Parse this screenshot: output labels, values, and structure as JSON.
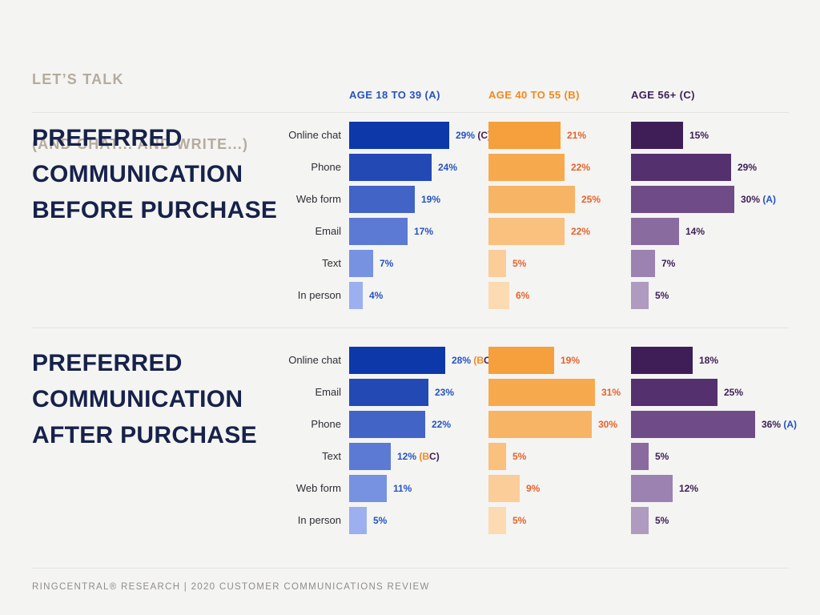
{
  "title": {
    "line1": "LET’S TALK",
    "line2": "(AND CHAT... AND WRITE...)"
  },
  "group_colors": {
    "A": "#2553C4",
    "B": "#F6871E",
    "C": "#3E2057"
  },
  "columns": [
    {
      "id": "A",
      "label": "AGE 18 TO 39 (A)",
      "header_color": "#2553C4",
      "value_color": "#2553C4",
      "shades": [
        "#0D38A9",
        "#2349B5",
        "#4264C7",
        "#5C7AD4",
        "#7792E1",
        "#9CAFEF"
      ]
    },
    {
      "id": "B",
      "label": "AGE 40 TO 55 (B)",
      "header_color": "#F6871E",
      "value_color": "#E8622D",
      "shades": [
        "#F5A03C",
        "#F7A94E",
        "#F8B465",
        "#F9C07E",
        "#FBCD98",
        "#FCDAB2"
      ]
    },
    {
      "id": "C",
      "label": "AGE 56+ (C)",
      "header_color": "#3E2057",
      "value_color": "#3E2057",
      "shades": [
        "#3F1E58",
        "#54306F",
        "#6F4C87",
        "#8A6BA0",
        "#9C82B0",
        "#AF9AC0"
      ]
    }
  ],
  "sections": [
    {
      "id": "before-purchase",
      "title_lines": [
        "PREFERRED",
        "COMMUNICATION",
        "BEFORE PURCHASE"
      ],
      "rows": [
        {
          "label": "Online chat",
          "values": [
            {
              "pct": 29,
              "notes": [
                "C"
              ]
            },
            {
              "pct": 21,
              "notes": []
            },
            {
              "pct": 15,
              "notes": []
            }
          ]
        },
        {
          "label": "Phone",
          "values": [
            {
              "pct": 24,
              "notes": []
            },
            {
              "pct": 22,
              "notes": []
            },
            {
              "pct": 29,
              "notes": []
            }
          ]
        },
        {
          "label": "Web form",
          "values": [
            {
              "pct": 19,
              "notes": []
            },
            {
              "pct": 25,
              "notes": []
            },
            {
              "pct": 30,
              "notes": [
                "A"
              ]
            }
          ]
        },
        {
          "label": "Email",
          "values": [
            {
              "pct": 17,
              "notes": []
            },
            {
              "pct": 22,
              "notes": []
            },
            {
              "pct": 14,
              "notes": []
            }
          ]
        },
        {
          "label": "Text",
          "values": [
            {
              "pct": 7,
              "notes": []
            },
            {
              "pct": 5,
              "notes": []
            },
            {
              "pct": 7,
              "notes": []
            }
          ]
        },
        {
          "label": "In person",
          "values": [
            {
              "pct": 4,
              "notes": []
            },
            {
              "pct": 6,
              "notes": []
            },
            {
              "pct": 5,
              "notes": []
            }
          ]
        }
      ]
    },
    {
      "id": "after-purchase",
      "title_lines": [
        "PREFERRED",
        "COMMUNICATION",
        "AFTER PURCHASE"
      ],
      "rows": [
        {
          "label": "Online chat",
          "values": [
            {
              "pct": 28,
              "notes": [
                "B",
                "C"
              ]
            },
            {
              "pct": 19,
              "notes": []
            },
            {
              "pct": 18,
              "notes": []
            }
          ]
        },
        {
          "label": "Email",
          "values": [
            {
              "pct": 23,
              "notes": []
            },
            {
              "pct": 31,
              "notes": []
            },
            {
              "pct": 25,
              "notes": []
            }
          ]
        },
        {
          "label": "Phone",
          "values": [
            {
              "pct": 22,
              "notes": []
            },
            {
              "pct": 30,
              "notes": []
            },
            {
              "pct": 36,
              "notes": [
                "A"
              ]
            }
          ]
        },
        {
          "label": "Text",
          "values": [
            {
              "pct": 12,
              "notes": [
                "B",
                "C"
              ]
            },
            {
              "pct": 5,
              "notes": []
            },
            {
              "pct": 5,
              "notes": []
            }
          ]
        },
        {
          "label": "Web form",
          "values": [
            {
              "pct": 11,
              "notes": []
            },
            {
              "pct": 9,
              "notes": []
            },
            {
              "pct": 12,
              "notes": []
            }
          ]
        },
        {
          "label": "In person",
          "values": [
            {
              "pct": 5,
              "notes": []
            },
            {
              "pct": 5,
              "notes": []
            },
            {
              "pct": 5,
              "notes": []
            }
          ]
        }
      ]
    }
  ],
  "footer": {
    "text": "RINGCENTRAL® RESEARCH   |   2020 CUSTOMER COMMUNICATIONS REVIEW"
  },
  "chart_data": [
    {
      "type": "bar",
      "orientation": "horizontal",
      "title": "PREFERRED COMMUNICATION BEFORE PURCHASE",
      "unit": "percent",
      "categories": [
        "Online chat",
        "Phone",
        "Web form",
        "Email",
        "Text",
        "In person"
      ],
      "series": [
        {
          "name": "AGE 18 TO 39 (A)",
          "values": [
            29,
            24,
            19,
            17,
            7,
            4
          ],
          "annotations": {
            "Online chat": "(C)"
          }
        },
        {
          "name": "AGE 40 TO 55 (B)",
          "values": [
            21,
            22,
            25,
            22,
            5,
            6
          ],
          "annotations": {}
        },
        {
          "name": "AGE 56+ (C)",
          "values": [
            15,
            29,
            30,
            14,
            7,
            5
          ],
          "annotations": {
            "Web form": "(A)"
          }
        }
      ],
      "xlim": [
        0,
        40
      ],
      "grid": false,
      "legend_position": "top"
    },
    {
      "type": "bar",
      "orientation": "horizontal",
      "title": "PREFERRED COMMUNICATION AFTER PURCHASE",
      "unit": "percent",
      "categories": [
        "Online chat",
        "Email",
        "Phone",
        "Text",
        "Web form",
        "In person"
      ],
      "series": [
        {
          "name": "AGE 18 TO 39 (A)",
          "values": [
            28,
            23,
            22,
            12,
            11,
            5
          ],
          "annotations": {
            "Online chat": "(BC)",
            "Text": "(BC)"
          }
        },
        {
          "name": "AGE 40 TO 55 (B)",
          "values": [
            19,
            31,
            30,
            5,
            9,
            5
          ],
          "annotations": {}
        },
        {
          "name": "AGE 56+ (C)",
          "values": [
            18,
            25,
            36,
            5,
            12,
            5
          ],
          "annotations": {
            "Phone": "(A)"
          }
        }
      ],
      "xlim": [
        0,
        40
      ],
      "grid": false,
      "legend_position": "top"
    }
  ]
}
